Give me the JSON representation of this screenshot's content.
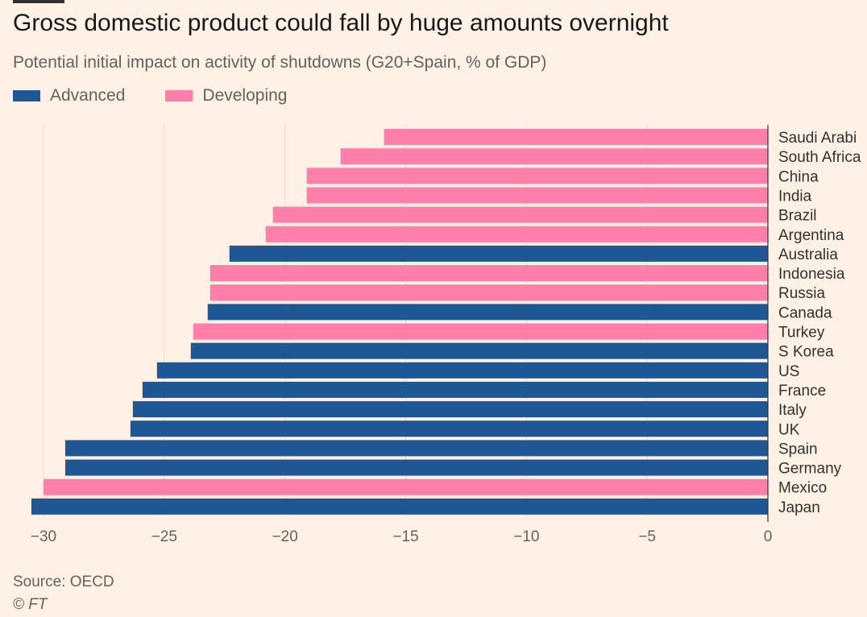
{
  "title": "Gross domestic product could fall by huge amounts overnight",
  "subtitle": "Potential initial impact on activity of shutdowns (G20+Spain, % of GDP)",
  "legend": {
    "advanced": "Advanced",
    "developing": "Developing"
  },
  "colors": {
    "advanced": "#1f5694",
    "developing": "#ff7fab",
    "grid": "#e6d9ce",
    "background": "#fff1e5"
  },
  "source": "Source: OECD",
  "copyright": "© FT",
  "chart_data": {
    "type": "bar",
    "orientation": "horizontal",
    "xlim": [
      -30.5,
      0
    ],
    "x_ticks": [
      -30,
      -25,
      -20,
      -15,
      -10,
      -5,
      0
    ],
    "grid": true,
    "legend_position": "top-left",
    "categories": [
      "Saudi Arabia",
      "South Africa",
      "China",
      "India",
      "Brazil",
      "Argentina",
      "Australia",
      "Indonesia",
      "Russia",
      "Canada",
      "Turkey",
      "S Korea",
      "US",
      "France",
      "Italy",
      "UK",
      "Spain",
      "Germany",
      "Mexico",
      "Japan"
    ],
    "category_labels": [
      "Saudi Arabi",
      "South Africa",
      "China",
      "India",
      "Brazil",
      "Argentina",
      "Australia",
      "Indonesia",
      "Russia",
      "Canada",
      "Turkey",
      "S Korea",
      "US",
      "France",
      "Italy",
      "UK",
      "Spain",
      "Germany",
      "Mexico",
      "Japan"
    ],
    "values": [
      -15.9,
      -17.7,
      -19.1,
      -19.1,
      -20.5,
      -20.8,
      -22.3,
      -23.1,
      -23.1,
      -23.2,
      -23.8,
      -23.9,
      -25.3,
      -25.9,
      -26.3,
      -26.4,
      -29.1,
      -29.1,
      -30.0,
      -30.5
    ],
    "group": [
      "developing",
      "developing",
      "developing",
      "developing",
      "developing",
      "developing",
      "advanced",
      "developing",
      "developing",
      "advanced",
      "developing",
      "advanced",
      "advanced",
      "advanced",
      "advanced",
      "advanced",
      "advanced",
      "advanced",
      "developing",
      "advanced"
    ]
  }
}
